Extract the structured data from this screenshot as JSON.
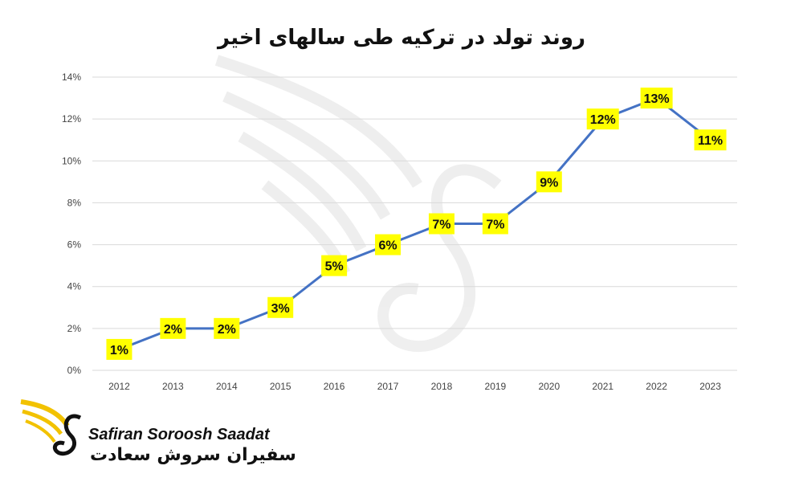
{
  "chart_data": {
    "type": "line",
    "title": "روند تولد در ترکیه طی سالهای اخیر",
    "x": [
      "2012",
      "2013",
      "2014",
      "2015",
      "2016",
      "2017",
      "2018",
      "2019",
      "2020",
      "2021",
      "2022",
      "2023"
    ],
    "series": [
      {
        "values": [
          1,
          2,
          2,
          3,
          5,
          6,
          7,
          7,
          9,
          12,
          13,
          11
        ],
        "labels": [
          "1%",
          "2%",
          "2%",
          "3%",
          "5%",
          "6%",
          "7%",
          "7%",
          "9%",
          "12%",
          "13%",
          "11%"
        ]
      }
    ],
    "y_ticks": [
      "0%",
      "2%",
      "4%",
      "6%",
      "8%",
      "10%",
      "12%",
      "14%"
    ],
    "ylim": [
      0,
      14
    ],
    "grid": true,
    "line_color": "#4472C4",
    "label_bg_color": "#FFFF00"
  },
  "brand": {
    "name": "Safiran Soroosh Saadat",
    "name_fa": "سفیران سروش سعادت",
    "logo_color": "#F2C200"
  }
}
